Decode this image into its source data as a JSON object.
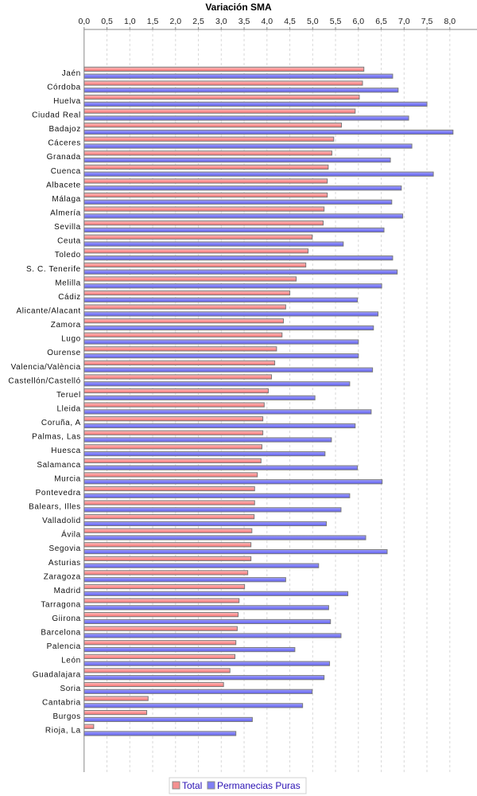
{
  "chart_data": {
    "type": "bar",
    "orientation": "horizontal",
    "title": "Variación SMA",
    "xlabel": "",
    "ylabel": "",
    "xlim": [
      0,
      8.3
    ],
    "x_ticks": [
      "0,0",
      "0,5",
      "1,0",
      "1,5",
      "2,0",
      "2,5",
      "3,0",
      "3,5",
      "4,0",
      "4,5",
      "5,0",
      "5,5",
      "6,0",
      "6,5",
      "7,0",
      "7,5",
      "8,0"
    ],
    "x_tick_values": [
      0,
      0.5,
      1,
      1.5,
      2,
      2.5,
      3,
      3.5,
      4,
      4.5,
      5,
      5.5,
      6,
      6.5,
      7,
      7.5,
      8
    ],
    "x_axis_position": "top",
    "grid": true,
    "legend_position": "bottom-center",
    "categories": [
      "Jaén",
      "Córdoba",
      "Huelva",
      "Ciudad Real",
      "Badajoz",
      "Cáceres",
      "Granada",
      "Cuenca",
      "Albacete",
      "Málaga",
      "Almería",
      "Sevilla",
      "Ceuta",
      "Toledo",
      "S. C. Tenerife",
      "Melilla",
      "Cádiz",
      "Alicante/Alacant",
      "Zamora",
      "Lugo",
      "Ourense",
      "Valencia/València",
      "Castellón/Castelló",
      "Teruel",
      "Lleida",
      "Coruña, A",
      "Palmas, Las",
      "Huesca",
      "Salamanca",
      "Murcia",
      "Pontevedra",
      "Balears, Illes",
      "Valladolid",
      "Ávila",
      "Segovia",
      "Asturias",
      "Zaragoza",
      "Madrid",
      "Tarragona",
      "Giirona",
      "Barcelona",
      "Palencia",
      "León",
      "Guadalajara",
      "Soria",
      "Cantabria",
      "Burgos",
      "Rioja, La"
    ],
    "series": [
      {
        "name": "Total",
        "color": "#f08080",
        "values": [
          6.12,
          6.09,
          6.02,
          5.93,
          5.63,
          5.46,
          5.42,
          5.34,
          5.32,
          5.32,
          5.25,
          5.23,
          4.99,
          4.9,
          4.85,
          4.64,
          4.5,
          4.41,
          4.36,
          4.33,
          4.21,
          4.17,
          4.1,
          4.03,
          3.94,
          3.91,
          3.91,
          3.89,
          3.87,
          3.79,
          3.73,
          3.73,
          3.72,
          3.67,
          3.65,
          3.65,
          3.58,
          3.51,
          3.39,
          3.37,
          3.35,
          3.32,
          3.3,
          3.19,
          3.05,
          1.4,
          1.37,
          0.21
        ]
      },
      {
        "name": "Permanecias Puras",
        "color": "#7070ee",
        "values": [
          6.75,
          6.87,
          7.5,
          7.1,
          8.07,
          7.17,
          6.7,
          7.64,
          6.94,
          6.73,
          6.97,
          6.56,
          5.67,
          6.75,
          6.85,
          6.51,
          5.98,
          6.43,
          6.33,
          6.0,
          6.0,
          6.31,
          5.81,
          5.05,
          6.28,
          5.93,
          5.41,
          5.27,
          5.98,
          6.52,
          5.81,
          5.62,
          5.3,
          6.16,
          6.63,
          5.13,
          4.41,
          5.77,
          5.35,
          5.39,
          5.62,
          4.61,
          5.37,
          5.25,
          4.99,
          4.78,
          3.68,
          3.32
        ]
      }
    ]
  }
}
